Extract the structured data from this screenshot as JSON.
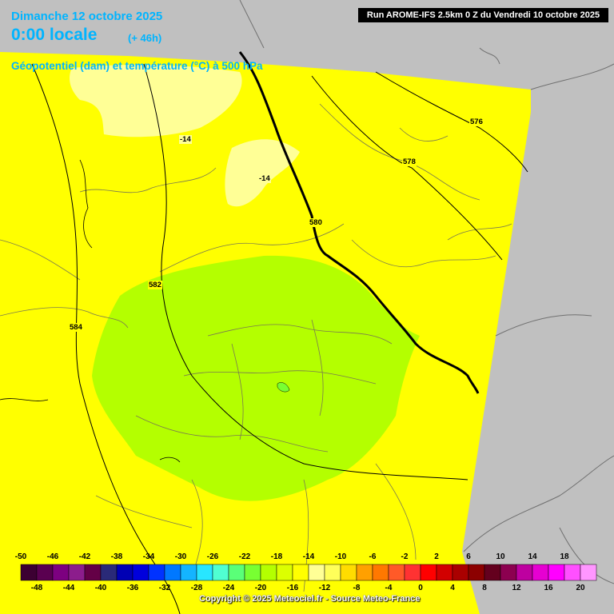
{
  "header": {
    "date_line": "Dimanche 12 octobre 2025",
    "time_line": "0:00 locale",
    "offset": "(+ 46h)",
    "subtitle": "Géopotentiel (dam) et température (°C) à 500 hPa",
    "run_info": "Run AROME-IFS 2.5km 0 Z du Vendredi 10 octobre 2025"
  },
  "geopotential_labels": [
    "576",
    "578",
    "580",
    "582",
    "584"
  ],
  "temperature_labels": [
    "-14",
    "-14"
  ],
  "legend": {
    "top_labels": [
      "-50",
      "-46",
      "-42",
      "-38",
      "-34",
      "-30",
      "-26",
      "-22",
      "-18",
      "-14",
      "-10",
      "-6",
      "-2",
      "2",
      "6",
      "10",
      "14",
      "18"
    ],
    "bottom_labels": [
      "-48",
      "-44",
      "-40",
      "-36",
      "-32",
      "-28",
      "-24",
      "-20",
      "-16",
      "-12",
      "-8",
      "-4",
      "0",
      "4",
      "8",
      "12",
      "16",
      "20"
    ],
    "colors": [
      "#3c0032",
      "#5a0050",
      "#7d0080",
      "#8c1d8c",
      "#640046",
      "#2a2a78",
      "#0000b4",
      "#0000dc",
      "#0032ff",
      "#0078ff",
      "#14b4ff",
      "#28e6ff",
      "#50ffd2",
      "#5aff78",
      "#78ff32",
      "#b4ff00",
      "#dcff00",
      "#ffff00",
      "#ffff96",
      "#ffff5a",
      "#ffdc00",
      "#ffa000",
      "#ff7800",
      "#ff5a28",
      "#ff3232",
      "#ff0000",
      "#d20000",
      "#aa0000",
      "#8c0000",
      "#64001e",
      "#8c0050",
      "#be00a0",
      "#e600d2",
      "#ff00ff",
      "#ff50ff",
      "#ff96ff"
    ]
  },
  "copyright": "Copyright © 2025 Meteociel.fr - Source Meteo-France",
  "colors": {
    "outside_domain": "#c0c0c0",
    "field_yellow": "#ffff00",
    "pale_yellow": "#ffff96",
    "green": "#b4ff00",
    "title_blue": "#00b4ff"
  }
}
